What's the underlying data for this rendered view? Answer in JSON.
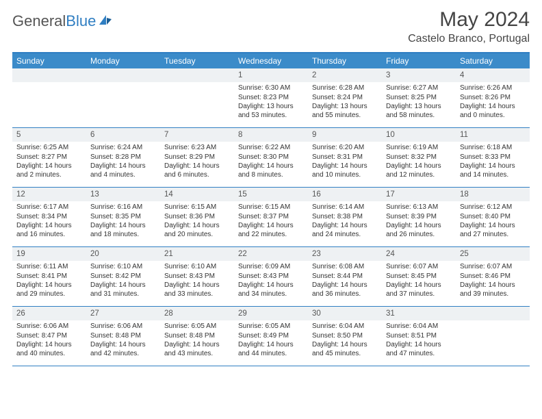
{
  "brand": {
    "part1": "General",
    "part2": "Blue"
  },
  "title": "May 2024",
  "location": "Castelo Branco, Portugal",
  "colors": {
    "header_bg": "#3b8bc9",
    "border": "#2f7ec2",
    "daynum_bg": "#eef1f3",
    "text": "#333333"
  },
  "day_headers": [
    "Sunday",
    "Monday",
    "Tuesday",
    "Wednesday",
    "Thursday",
    "Friday",
    "Saturday"
  ],
  "weeks": [
    [
      {
        "n": "",
        "sunrise": "",
        "sunset": "",
        "daylight": ""
      },
      {
        "n": "",
        "sunrise": "",
        "sunset": "",
        "daylight": ""
      },
      {
        "n": "",
        "sunrise": "",
        "sunset": "",
        "daylight": ""
      },
      {
        "n": "1",
        "sunrise": "Sunrise: 6:30 AM",
        "sunset": "Sunset: 8:23 PM",
        "daylight": "Daylight: 13 hours and 53 minutes."
      },
      {
        "n": "2",
        "sunrise": "Sunrise: 6:28 AM",
        "sunset": "Sunset: 8:24 PM",
        "daylight": "Daylight: 13 hours and 55 minutes."
      },
      {
        "n": "3",
        "sunrise": "Sunrise: 6:27 AM",
        "sunset": "Sunset: 8:25 PM",
        "daylight": "Daylight: 13 hours and 58 minutes."
      },
      {
        "n": "4",
        "sunrise": "Sunrise: 6:26 AM",
        "sunset": "Sunset: 8:26 PM",
        "daylight": "Daylight: 14 hours and 0 minutes."
      }
    ],
    [
      {
        "n": "5",
        "sunrise": "Sunrise: 6:25 AM",
        "sunset": "Sunset: 8:27 PM",
        "daylight": "Daylight: 14 hours and 2 minutes."
      },
      {
        "n": "6",
        "sunrise": "Sunrise: 6:24 AM",
        "sunset": "Sunset: 8:28 PM",
        "daylight": "Daylight: 14 hours and 4 minutes."
      },
      {
        "n": "7",
        "sunrise": "Sunrise: 6:23 AM",
        "sunset": "Sunset: 8:29 PM",
        "daylight": "Daylight: 14 hours and 6 minutes."
      },
      {
        "n": "8",
        "sunrise": "Sunrise: 6:22 AM",
        "sunset": "Sunset: 8:30 PM",
        "daylight": "Daylight: 14 hours and 8 minutes."
      },
      {
        "n": "9",
        "sunrise": "Sunrise: 6:20 AM",
        "sunset": "Sunset: 8:31 PM",
        "daylight": "Daylight: 14 hours and 10 minutes."
      },
      {
        "n": "10",
        "sunrise": "Sunrise: 6:19 AM",
        "sunset": "Sunset: 8:32 PM",
        "daylight": "Daylight: 14 hours and 12 minutes."
      },
      {
        "n": "11",
        "sunrise": "Sunrise: 6:18 AM",
        "sunset": "Sunset: 8:33 PM",
        "daylight": "Daylight: 14 hours and 14 minutes."
      }
    ],
    [
      {
        "n": "12",
        "sunrise": "Sunrise: 6:17 AM",
        "sunset": "Sunset: 8:34 PM",
        "daylight": "Daylight: 14 hours and 16 minutes."
      },
      {
        "n": "13",
        "sunrise": "Sunrise: 6:16 AM",
        "sunset": "Sunset: 8:35 PM",
        "daylight": "Daylight: 14 hours and 18 minutes."
      },
      {
        "n": "14",
        "sunrise": "Sunrise: 6:15 AM",
        "sunset": "Sunset: 8:36 PM",
        "daylight": "Daylight: 14 hours and 20 minutes."
      },
      {
        "n": "15",
        "sunrise": "Sunrise: 6:15 AM",
        "sunset": "Sunset: 8:37 PM",
        "daylight": "Daylight: 14 hours and 22 minutes."
      },
      {
        "n": "16",
        "sunrise": "Sunrise: 6:14 AM",
        "sunset": "Sunset: 8:38 PM",
        "daylight": "Daylight: 14 hours and 24 minutes."
      },
      {
        "n": "17",
        "sunrise": "Sunrise: 6:13 AM",
        "sunset": "Sunset: 8:39 PM",
        "daylight": "Daylight: 14 hours and 26 minutes."
      },
      {
        "n": "18",
        "sunrise": "Sunrise: 6:12 AM",
        "sunset": "Sunset: 8:40 PM",
        "daylight": "Daylight: 14 hours and 27 minutes."
      }
    ],
    [
      {
        "n": "19",
        "sunrise": "Sunrise: 6:11 AM",
        "sunset": "Sunset: 8:41 PM",
        "daylight": "Daylight: 14 hours and 29 minutes."
      },
      {
        "n": "20",
        "sunrise": "Sunrise: 6:10 AM",
        "sunset": "Sunset: 8:42 PM",
        "daylight": "Daylight: 14 hours and 31 minutes."
      },
      {
        "n": "21",
        "sunrise": "Sunrise: 6:10 AM",
        "sunset": "Sunset: 8:43 PM",
        "daylight": "Daylight: 14 hours and 33 minutes."
      },
      {
        "n": "22",
        "sunrise": "Sunrise: 6:09 AM",
        "sunset": "Sunset: 8:43 PM",
        "daylight": "Daylight: 14 hours and 34 minutes."
      },
      {
        "n": "23",
        "sunrise": "Sunrise: 6:08 AM",
        "sunset": "Sunset: 8:44 PM",
        "daylight": "Daylight: 14 hours and 36 minutes."
      },
      {
        "n": "24",
        "sunrise": "Sunrise: 6:07 AM",
        "sunset": "Sunset: 8:45 PM",
        "daylight": "Daylight: 14 hours and 37 minutes."
      },
      {
        "n": "25",
        "sunrise": "Sunrise: 6:07 AM",
        "sunset": "Sunset: 8:46 PM",
        "daylight": "Daylight: 14 hours and 39 minutes."
      }
    ],
    [
      {
        "n": "26",
        "sunrise": "Sunrise: 6:06 AM",
        "sunset": "Sunset: 8:47 PM",
        "daylight": "Daylight: 14 hours and 40 minutes."
      },
      {
        "n": "27",
        "sunrise": "Sunrise: 6:06 AM",
        "sunset": "Sunset: 8:48 PM",
        "daylight": "Daylight: 14 hours and 42 minutes."
      },
      {
        "n": "28",
        "sunrise": "Sunrise: 6:05 AM",
        "sunset": "Sunset: 8:48 PM",
        "daylight": "Daylight: 14 hours and 43 minutes."
      },
      {
        "n": "29",
        "sunrise": "Sunrise: 6:05 AM",
        "sunset": "Sunset: 8:49 PM",
        "daylight": "Daylight: 14 hours and 44 minutes."
      },
      {
        "n": "30",
        "sunrise": "Sunrise: 6:04 AM",
        "sunset": "Sunset: 8:50 PM",
        "daylight": "Daylight: 14 hours and 45 minutes."
      },
      {
        "n": "31",
        "sunrise": "Sunrise: 6:04 AM",
        "sunset": "Sunset: 8:51 PM",
        "daylight": "Daylight: 14 hours and 47 minutes."
      },
      {
        "n": "",
        "sunrise": "",
        "sunset": "",
        "daylight": ""
      }
    ]
  ]
}
